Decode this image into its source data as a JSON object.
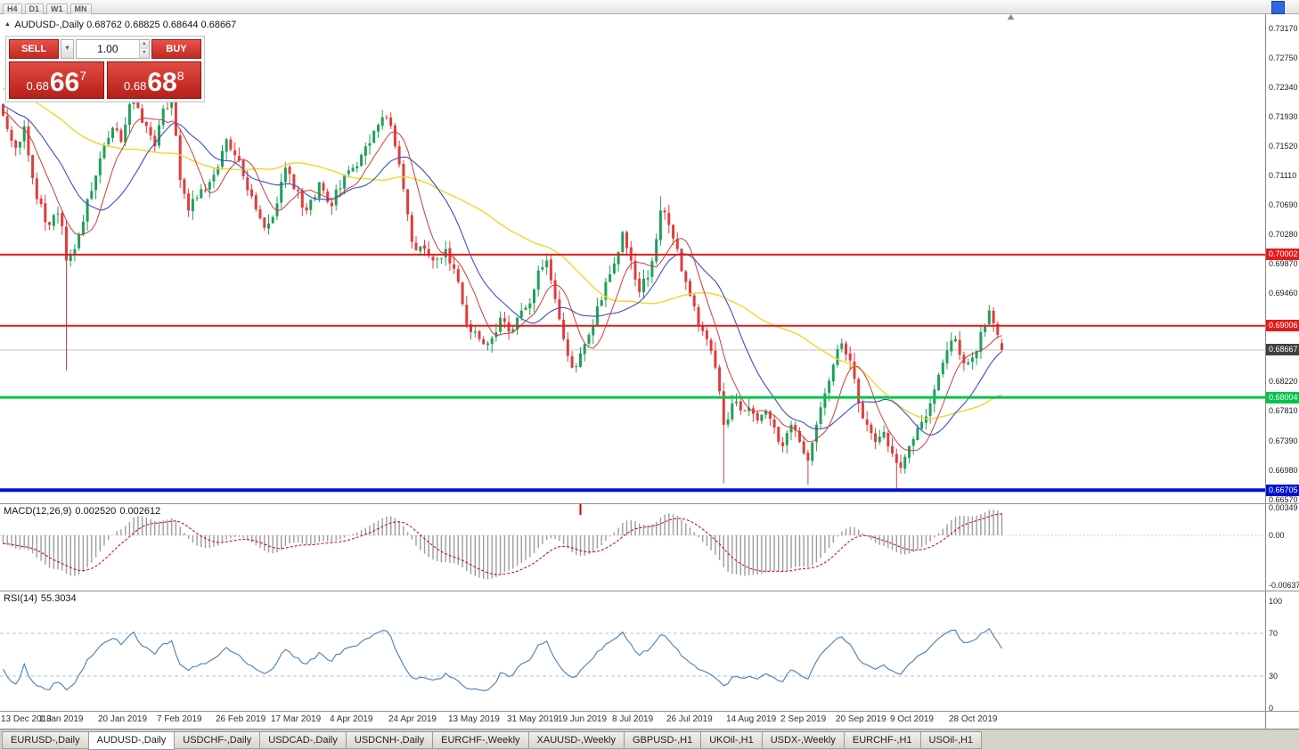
{
  "toolbar": {
    "timeframes": [
      "H4",
      "D1",
      "W1",
      "MN"
    ]
  },
  "header": {
    "symbol": "AUDUSD-,Daily",
    "ohlc": "0.68762 0.68825 0.68644 0.68667"
  },
  "trade_panel": {
    "sell_label": "SELL",
    "buy_label": "BUY",
    "volume": "1.00",
    "sell_price": {
      "base": "0.68",
      "big": "66",
      "sup": "7"
    },
    "buy_price": {
      "base": "0.68",
      "big": "68",
      "sup": "8"
    }
  },
  "chart_data": {
    "type": "candlestick",
    "symbol": "AUDUSD",
    "period": "Daily",
    "ohlc_last": {
      "open": 0.68762,
      "high": 0.68825,
      "low": 0.68644,
      "close": 0.68667
    },
    "current_price": 0.68667,
    "current_price_label": "0.68667",
    "price_axis_ticks": [
      "0.73170",
      "0.72750",
      "0.72340",
      "0.71930",
      "0.71520",
      "0.71110",
      "0.70690",
      "0.70280",
      "0.69870",
      "0.69460",
      "0.68220",
      "0.67810",
      "0.67390",
      "0.66980",
      "0.66570"
    ],
    "hlines": [
      {
        "price": 0.70002,
        "label": "0.70002",
        "color": "#e21b1b",
        "width": 2
      },
      {
        "price": 0.69006,
        "label": "0.69006",
        "color": "#e21b1b",
        "width": 2
      },
      {
        "price": 0.68004,
        "label": "0.68004",
        "color": "#00c44a",
        "width": 3
      },
      {
        "price": 0.66705,
        "label": "0.66705",
        "color": "#0013d0",
        "width": 4
      }
    ],
    "x_axis": [
      {
        "label": "13 Dec 2018",
        "index": 0
      },
      {
        "label": "1 Jan 2019",
        "index": 14
      },
      {
        "label": "20 Jan 2019",
        "index": 28
      },
      {
        "label": "7 Feb 2019",
        "index": 42
      },
      {
        "label": "26 Feb 2019",
        "index": 56
      },
      {
        "label": "17 Mar 2019",
        "index": 69
      },
      {
        "label": "4 Apr 2019",
        "index": 83
      },
      {
        "label": "24 Apr 2019",
        "index": 97
      },
      {
        "label": "13 May 2019",
        "index": 111
      },
      {
        "label": "31 May 2019",
        "index": 125
      },
      {
        "label": "19 Jun 2019",
        "index": 137
      },
      {
        "label": "8 Jul 2019",
        "index": 150
      },
      {
        "label": "26 Jul 2019",
        "index": 163
      },
      {
        "label": "14 Aug 2019",
        "index": 177
      },
      {
        "label": "2 Sep 2019",
        "index": 190
      },
      {
        "label": "20 Sep 2019",
        "index": 203
      },
      {
        "label": "9 Oct 2019",
        "index": 216
      },
      {
        "label": "28 Oct 2019",
        "index": 230
      }
    ],
    "candle_count": 238,
    "prehistory": {
      "count": 60,
      "start": 0.729,
      "end": 0.7195
    },
    "close_anchors": [
      [
        0,
        0.7195
      ],
      [
        3,
        0.715
      ],
      [
        5,
        0.718
      ],
      [
        8,
        0.7078
      ],
      [
        11,
        0.7042
      ],
      [
        13,
        0.7058
      ],
      [
        14,
        0.704
      ],
      [
        15,
        0.6992
      ],
      [
        17,
        0.7008
      ],
      [
        20,
        0.7078
      ],
      [
        23,
        0.7135
      ],
      [
        26,
        0.7178
      ],
      [
        28,
        0.7158
      ],
      [
        31,
        0.7235
      ],
      [
        33,
        0.7185
      ],
      [
        36,
        0.7152
      ],
      [
        38,
        0.7205
      ],
      [
        40,
        0.7222
      ],
      [
        42,
        0.7105
      ],
      [
        44,
        0.7062
      ],
      [
        47,
        0.7092
      ],
      [
        50,
        0.7112
      ],
      [
        53,
        0.7162
      ],
      [
        56,
        0.7132
      ],
      [
        59,
        0.7082
      ],
      [
        62,
        0.7038
      ],
      [
        65,
        0.7072
      ],
      [
        67,
        0.7122
      ],
      [
        69,
        0.7092
      ],
      [
        72,
        0.7062
      ],
      [
        75,
        0.7102
      ],
      [
        78,
        0.7068
      ],
      [
        81,
        0.7112
      ],
      [
        83,
        0.7122
      ],
      [
        86,
        0.7152
      ],
      [
        89,
        0.7182
      ],
      [
        91,
        0.7192
      ],
      [
        93,
        0.7152
      ],
      [
        95,
        0.7092
      ],
      [
        97,
        0.7018
      ],
      [
        99,
        0.7012
      ],
      [
        102,
        0.6992
      ],
      [
        105,
        0.7008
      ],
      [
        108,
        0.6962
      ],
      [
        110,
        0.6902
      ],
      [
        113,
        0.6882
      ],
      [
        115,
        0.6876
      ],
      [
        118,
        0.6912
      ],
      [
        121,
        0.6896
      ],
      [
        124,
        0.6926
      ],
      [
        125,
        0.6932
      ],
      [
        127,
        0.6978
      ],
      [
        129,
        0.6992
      ],
      [
        131,
        0.6938
      ],
      [
        133,
        0.6882
      ],
      [
        135,
        0.6842
      ],
      [
        137,
        0.6862
      ],
      [
        139,
        0.6888
      ],
      [
        141,
        0.6928
      ],
      [
        143,
        0.6962
      ],
      [
        145,
        0.6988
      ],
      [
        147,
        0.7032
      ],
      [
        149,
        0.6992
      ],
      [
        151,
        0.6948
      ],
      [
        153,
        0.6968
      ],
      [
        155,
        0.7022
      ],
      [
        156,
        0.7062
      ],
      [
        158,
        0.7042
      ],
      [
        160,
        0.7008
      ],
      [
        162,
        0.6962
      ],
      [
        163,
        0.6942
      ],
      [
        165,
        0.6902
      ],
      [
        167,
        0.6882
      ],
      [
        169,
        0.6842
      ],
      [
        171,
        0.6762
      ],
      [
        173,
        0.6792
      ],
      [
        175,
        0.6782
      ],
      [
        177,
        0.6786
      ],
      [
        179,
        0.6768
      ],
      [
        181,
        0.6782
      ],
      [
        183,
        0.6758
      ],
      [
        185,
        0.6732
      ],
      [
        187,
        0.6762
      ],
      [
        189,
        0.6738
      ],
      [
        190,
        0.6722
      ],
      [
        191,
        0.6712
      ],
      [
        193,
        0.6762
      ],
      [
        195,
        0.6806
      ],
      [
        197,
        0.6846
      ],
      [
        199,
        0.6876
      ],
      [
        201,
        0.6852
      ],
      [
        203,
        0.6792
      ],
      [
        205,
        0.6762
      ],
      [
        207,
        0.6738
      ],
      [
        209,
        0.6752
      ],
      [
        211,
        0.6722
      ],
      [
        213,
        0.6702
      ],
      [
        215,
        0.6732
      ],
      [
        216,
        0.6742
      ],
      [
        218,
        0.6766
      ],
      [
        220,
        0.6792
      ],
      [
        222,
        0.6832
      ],
      [
        224,
        0.6866
      ],
      [
        226,
        0.6882
      ],
      [
        228,
        0.6848
      ],
      [
        230,
        0.6856
      ],
      [
        232,
        0.6892
      ],
      [
        234,
        0.6922
      ],
      [
        236,
        0.6888
      ],
      [
        237,
        0.68667
      ]
    ],
    "special_wicks": [
      {
        "index": 15,
        "low": 0.6838
      },
      {
        "index": 156,
        "high": 0.7082
      },
      {
        "index": 171,
        "low": 0.668
      },
      {
        "index": 191,
        "low": 0.6678
      },
      {
        "index": 212,
        "low": 0.6671
      },
      {
        "index": 234,
        "high": 0.693
      }
    ],
    "colors": {
      "up": "#1fa05a",
      "down": "#e03c3c",
      "ma_fast": "#cf3b3b",
      "ma_mid": "#3b4fc4",
      "ma_slow": "#f2d42e",
      "macd_hist": "#9c9c9c",
      "macd_signal": "#cc0000",
      "rsi": "#4a7db5"
    },
    "moving_averages": [
      {
        "period": 50,
        "color_key": "ma_slow",
        "width": 1.4
      },
      {
        "period": 18,
        "color_key": "ma_mid",
        "width": 1.1
      },
      {
        "period": 8,
        "color_key": "ma_fast",
        "width": 1.0
      }
    ],
    "macd": {
      "name": "MACD(12,26,9)",
      "value": "0.002520",
      "signal": "0.002612",
      "fast": 12,
      "slow": 26,
      "signal_period": 9,
      "axis_ticks": [
        "0.00349",
        "0.00",
        "-0.00637"
      ],
      "marker_index": 137
    },
    "rsi": {
      "name": "RSI(14)",
      "value": "55.3034",
      "period": 14,
      "axis_ticks": [
        "100",
        "70",
        "30",
        "0"
      ],
      "levels": [
        70,
        30
      ]
    }
  },
  "tabs": {
    "items": [
      {
        "label": "EURUSD-,Daily",
        "active": false
      },
      {
        "label": "AUDUSD-,Daily",
        "active": true
      },
      {
        "label": "USDCHF-,Daily",
        "active": false
      },
      {
        "label": "USDCAD-,Daily",
        "active": false
      },
      {
        "label": "USDCNH-,Daily",
        "active": false
      },
      {
        "label": "EURCHF-,Weekly",
        "active": false
      },
      {
        "label": "XAUUSD-,Weekly",
        "active": false
      },
      {
        "label": "GBPUSD-,H1",
        "active": false
      },
      {
        "label": "UKOil-,H1",
        "active": false
      },
      {
        "label": "USDX-,Weekly",
        "active": false
      },
      {
        "label": "EURCHF-,H1",
        "active": false
      },
      {
        "label": "USOil-,H1",
        "active": false
      }
    ]
  }
}
